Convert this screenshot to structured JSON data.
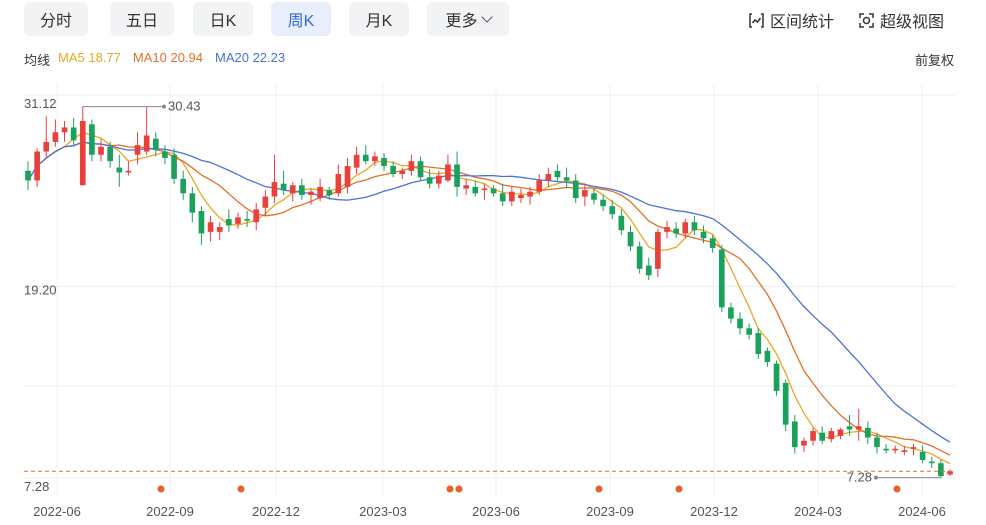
{
  "tabs": [
    {
      "label": "分时",
      "active": false
    },
    {
      "label": "五日",
      "active": false
    },
    {
      "label": "日K",
      "active": false
    },
    {
      "label": "周K",
      "active": true
    },
    {
      "label": "月K",
      "active": false
    },
    {
      "label": "更多",
      "active": false
    }
  ],
  "tools": {
    "range_stats": "区间统计",
    "super_view": "超级视图"
  },
  "ma": {
    "label": "均线",
    "ma5": "MA5 18.77",
    "ma10": "MA10 20.94",
    "ma20": "MA20 22.23"
  },
  "adjust": "前复权",
  "colors": {
    "up": "#e8403a",
    "down": "#1aa25c",
    "ma5": "#e9a825",
    "ma10": "#e0712a",
    "ma20": "#4a72d8",
    "active_tab": "#3a66d6"
  },
  "chart_data": {
    "type": "candlestick",
    "y_labels": [
      "31.12",
      "19.20",
      "7.28"
    ],
    "ylim": [
      7.28,
      31.12
    ],
    "x_labels": [
      "2022-06",
      "2022-09",
      "2022-12",
      "2023-03",
      "2023-06",
      "2023-09",
      "2023-12",
      "2024-03",
      "2024-06"
    ],
    "annotations": {
      "high": "30.43",
      "low": "7.28"
    },
    "last_price_line": 7.7,
    "event_markers": [
      4,
      12,
      24,
      25,
      34,
      38
    ],
    "candles": [
      {
        "o": 26.4,
        "h": 27.0,
        "l": 25.2,
        "c": 25.8
      },
      {
        "o": 25.8,
        "h": 27.8,
        "l": 25.4,
        "c": 27.6
      },
      {
        "o": 27.6,
        "h": 29.8,
        "l": 27.2,
        "c": 28.2
      },
      {
        "o": 28.2,
        "h": 29.6,
        "l": 27.9,
        "c": 28.8
      },
      {
        "o": 28.8,
        "h": 29.5,
        "l": 28.2,
        "c": 29.1
      },
      {
        "o": 29.1,
        "h": 29.7,
        "l": 28.0,
        "c": 28.3
      },
      {
        "o": 25.5,
        "h": 30.4,
        "l": 25.5,
        "c": 29.5
      },
      {
        "o": 29.3,
        "h": 29.6,
        "l": 27.0,
        "c": 27.4
      },
      {
        "o": 27.4,
        "h": 28.4,
        "l": 27.0,
        "c": 27.9
      },
      {
        "o": 27.9,
        "h": 28.2,
        "l": 26.6,
        "c": 27.0
      },
      {
        "o": 26.6,
        "h": 27.4,
        "l": 25.4,
        "c": 26.3
      },
      {
        "o": 26.3,
        "h": 27.0,
        "l": 26.1,
        "c": 26.4
      },
      {
        "o": 27.4,
        "h": 28.8,
        "l": 26.8,
        "c": 28.0
      },
      {
        "o": 27.6,
        "h": 30.4,
        "l": 27.4,
        "c": 28.6
      },
      {
        "o": 28.4,
        "h": 28.8,
        "l": 27.3,
        "c": 27.7
      },
      {
        "o": 27.6,
        "h": 28.0,
        "l": 26.8,
        "c": 27.2
      },
      {
        "o": 27.4,
        "h": 27.8,
        "l": 25.6,
        "c": 25.9
      },
      {
        "o": 25.9,
        "h": 26.4,
        "l": 24.6,
        "c": 25.0
      },
      {
        "o": 25.0,
        "h": 25.4,
        "l": 23.2,
        "c": 23.8
      },
      {
        "o": 23.9,
        "h": 24.2,
        "l": 21.8,
        "c": 22.5
      },
      {
        "o": 22.6,
        "h": 23.6,
        "l": 22.0,
        "c": 23.2
      },
      {
        "o": 22.6,
        "h": 23.2,
        "l": 22.1,
        "c": 22.9
      },
      {
        "o": 23.4,
        "h": 24.0,
        "l": 22.6,
        "c": 23.0
      },
      {
        "o": 23.1,
        "h": 23.8,
        "l": 22.8,
        "c": 23.5
      },
      {
        "o": 23.4,
        "h": 23.9,
        "l": 22.9,
        "c": 23.3
      },
      {
        "o": 23.2,
        "h": 24.4,
        "l": 22.7,
        "c": 24.0
      },
      {
        "o": 24.1,
        "h": 25.2,
        "l": 23.6,
        "c": 24.8
      },
      {
        "o": 24.8,
        "h": 27.4,
        "l": 24.4,
        "c": 25.7
      },
      {
        "o": 25.6,
        "h": 26.4,
        "l": 24.9,
        "c": 25.2
      },
      {
        "o": 25.0,
        "h": 25.7,
        "l": 24.5,
        "c": 25.5
      },
      {
        "o": 25.5,
        "h": 25.9,
        "l": 24.6,
        "c": 24.9
      },
      {
        "o": 24.9,
        "h": 25.3,
        "l": 24.3,
        "c": 25.1
      },
      {
        "o": 24.7,
        "h": 25.9,
        "l": 24.5,
        "c": 25.4
      },
      {
        "o": 25.2,
        "h": 25.4,
        "l": 24.6,
        "c": 24.9
      },
      {
        "o": 25.0,
        "h": 26.8,
        "l": 24.8,
        "c": 26.2
      },
      {
        "o": 25.4,
        "h": 27.2,
        "l": 25.0,
        "c": 26.7
      },
      {
        "o": 26.6,
        "h": 27.9,
        "l": 26.2,
        "c": 27.4
      },
      {
        "o": 27.4,
        "h": 28.0,
        "l": 26.8,
        "c": 27.0
      },
      {
        "o": 27.0,
        "h": 27.6,
        "l": 26.7,
        "c": 27.3
      },
      {
        "o": 27.2,
        "h": 27.5,
        "l": 26.4,
        "c": 26.7
      },
      {
        "o": 26.7,
        "h": 27.0,
        "l": 26.0,
        "c": 26.2
      },
      {
        "o": 26.2,
        "h": 26.6,
        "l": 25.9,
        "c": 26.4
      },
      {
        "o": 26.4,
        "h": 27.4,
        "l": 26.1,
        "c": 27.0
      },
      {
        "o": 27.0,
        "h": 27.3,
        "l": 25.8,
        "c": 26.0
      },
      {
        "o": 26.0,
        "h": 26.5,
        "l": 25.3,
        "c": 25.6
      },
      {
        "o": 25.6,
        "h": 26.4,
        "l": 25.3,
        "c": 26.1
      },
      {
        "o": 25.8,
        "h": 27.4,
        "l": 25.7,
        "c": 26.8
      },
      {
        "o": 26.8,
        "h": 27.6,
        "l": 24.8,
        "c": 25.4
      },
      {
        "o": 25.3,
        "h": 25.9,
        "l": 24.9,
        "c": 25.5
      },
      {
        "o": 25.4,
        "h": 25.8,
        "l": 24.8,
        "c": 25.0
      },
      {
        "o": 25.2,
        "h": 25.6,
        "l": 24.6,
        "c": 25.3
      },
      {
        "o": 25.3,
        "h": 25.5,
        "l": 24.8,
        "c": 25.0
      },
      {
        "o": 25.0,
        "h": 25.6,
        "l": 24.2,
        "c": 24.5
      },
      {
        "o": 24.5,
        "h": 25.4,
        "l": 24.2,
        "c": 25.1
      },
      {
        "o": 24.7,
        "h": 25.3,
        "l": 24.4,
        "c": 24.9
      },
      {
        "o": 24.8,
        "h": 25.4,
        "l": 24.3,
        "c": 25.1
      },
      {
        "o": 25.1,
        "h": 26.2,
        "l": 24.9,
        "c": 25.8
      },
      {
        "o": 25.8,
        "h": 26.6,
        "l": 25.4,
        "c": 26.2
      },
      {
        "o": 26.4,
        "h": 26.8,
        "l": 25.7,
        "c": 26.0
      },
      {
        "o": 26.0,
        "h": 26.6,
        "l": 25.3,
        "c": 25.8
      },
      {
        "o": 25.8,
        "h": 26.2,
        "l": 24.4,
        "c": 24.7
      },
      {
        "o": 24.8,
        "h": 25.6,
        "l": 24.2,
        "c": 25.2
      },
      {
        "o": 25.0,
        "h": 25.3,
        "l": 24.3,
        "c": 24.6
      },
      {
        "o": 24.6,
        "h": 24.9,
        "l": 23.9,
        "c": 24.2
      },
      {
        "o": 24.2,
        "h": 24.6,
        "l": 23.4,
        "c": 23.7
      },
      {
        "o": 23.6,
        "h": 24.0,
        "l": 22.4,
        "c": 22.7
      },
      {
        "o": 22.6,
        "h": 23.0,
        "l": 21.4,
        "c": 21.7
      },
      {
        "o": 21.7,
        "h": 22.0,
        "l": 20.0,
        "c": 20.3
      },
      {
        "o": 20.5,
        "h": 21.0,
        "l": 19.6,
        "c": 19.9
      },
      {
        "o": 20.3,
        "h": 22.8,
        "l": 19.8,
        "c": 22.6
      },
      {
        "o": 22.6,
        "h": 23.3,
        "l": 22.2,
        "c": 22.9
      },
      {
        "o": 22.8,
        "h": 23.2,
        "l": 22.2,
        "c": 22.5
      },
      {
        "o": 22.5,
        "h": 23.4,
        "l": 22.2,
        "c": 23.2
      },
      {
        "o": 23.2,
        "h": 23.6,
        "l": 22.4,
        "c": 22.7
      },
      {
        "o": 22.6,
        "h": 23.0,
        "l": 21.9,
        "c": 22.2
      },
      {
        "o": 22.2,
        "h": 22.4,
        "l": 21.3,
        "c": 21.6
      },
      {
        "o": 21.5,
        "h": 21.8,
        "l": 17.6,
        "c": 17.9
      },
      {
        "o": 17.9,
        "h": 18.2,
        "l": 16.9,
        "c": 17.2
      },
      {
        "o": 17.2,
        "h": 17.6,
        "l": 16.2,
        "c": 16.6
      },
      {
        "o": 16.6,
        "h": 16.9,
        "l": 15.9,
        "c": 16.2
      },
      {
        "o": 16.3,
        "h": 16.6,
        "l": 14.7,
        "c": 15.0
      },
      {
        "o": 15.2,
        "h": 15.4,
        "l": 14.2,
        "c": 14.5
      },
      {
        "o": 14.4,
        "h": 14.6,
        "l": 12.4,
        "c": 12.7
      },
      {
        "o": 13.2,
        "h": 13.4,
        "l": 10.2,
        "c": 10.6
      },
      {
        "o": 10.8,
        "h": 11.2,
        "l": 8.8,
        "c": 9.2
      },
      {
        "o": 9.3,
        "h": 9.8,
        "l": 8.9,
        "c": 9.6
      },
      {
        "o": 9.6,
        "h": 10.4,
        "l": 9.3,
        "c": 10.2
      },
      {
        "o": 10.1,
        "h": 10.5,
        "l": 9.4,
        "c": 9.6
      },
      {
        "o": 9.7,
        "h": 10.4,
        "l": 9.5,
        "c": 10.2
      },
      {
        "o": 9.9,
        "h": 10.4,
        "l": 9.7,
        "c": 10.3
      },
      {
        "o": 10.5,
        "h": 11.2,
        "l": 9.9,
        "c": 10.3
      },
      {
        "o": 10.3,
        "h": 11.6,
        "l": 9.6,
        "c": 10.5
      },
      {
        "o": 10.4,
        "h": 10.8,
        "l": 9.4,
        "c": 9.8
      },
      {
        "o": 9.8,
        "h": 10.1,
        "l": 8.8,
        "c": 9.2
      },
      {
        "o": 9.1,
        "h": 9.4,
        "l": 8.8,
        "c": 9.0
      },
      {
        "o": 9.0,
        "h": 9.3,
        "l": 8.8,
        "c": 9.1
      },
      {
        "o": 8.9,
        "h": 9.3,
        "l": 8.7,
        "c": 9.0
      },
      {
        "o": 9.1,
        "h": 9.4,
        "l": 8.7,
        "c": 9.2
      },
      {
        "o": 8.9,
        "h": 9.3,
        "l": 8.2,
        "c": 8.4
      },
      {
        "o": 8.3,
        "h": 8.6,
        "l": 7.9,
        "c": 8.2
      },
      {
        "o": 8.2,
        "h": 8.4,
        "l": 7.3,
        "c": 7.4
      },
      {
        "o": 7.5,
        "h": 7.8,
        "l": 7.4,
        "c": 7.7
      }
    ]
  }
}
